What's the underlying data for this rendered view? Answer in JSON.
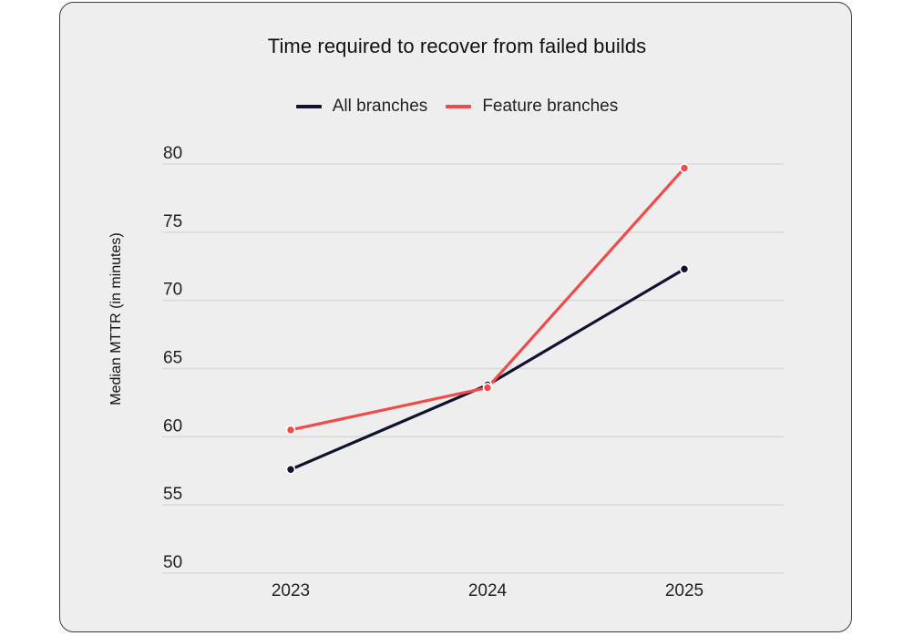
{
  "chart_data": {
    "type": "line",
    "title": "Time required to recover from failed builds",
    "xlabel": "",
    "ylabel": "Median MTTR (in minutes)",
    "categories": [
      "2023",
      "2024",
      "2025"
    ],
    "series": [
      {
        "name": "All branches",
        "color": "#0f1330",
        "values": [
          57.6,
          63.8,
          72.3
        ]
      },
      {
        "name": "Feature branches",
        "color": "#f04b4b",
        "values": [
          60.5,
          63.6,
          79.7
        ]
      }
    ],
    "ylim": [
      50,
      80
    ],
    "yticks": [
      50,
      55,
      60,
      65,
      70,
      75,
      80
    ],
    "grid": true,
    "legend_position": "top"
  },
  "colors": {
    "background": "#eeeeee",
    "grid": "#d8d8d8",
    "border": "#3a3a3a"
  }
}
